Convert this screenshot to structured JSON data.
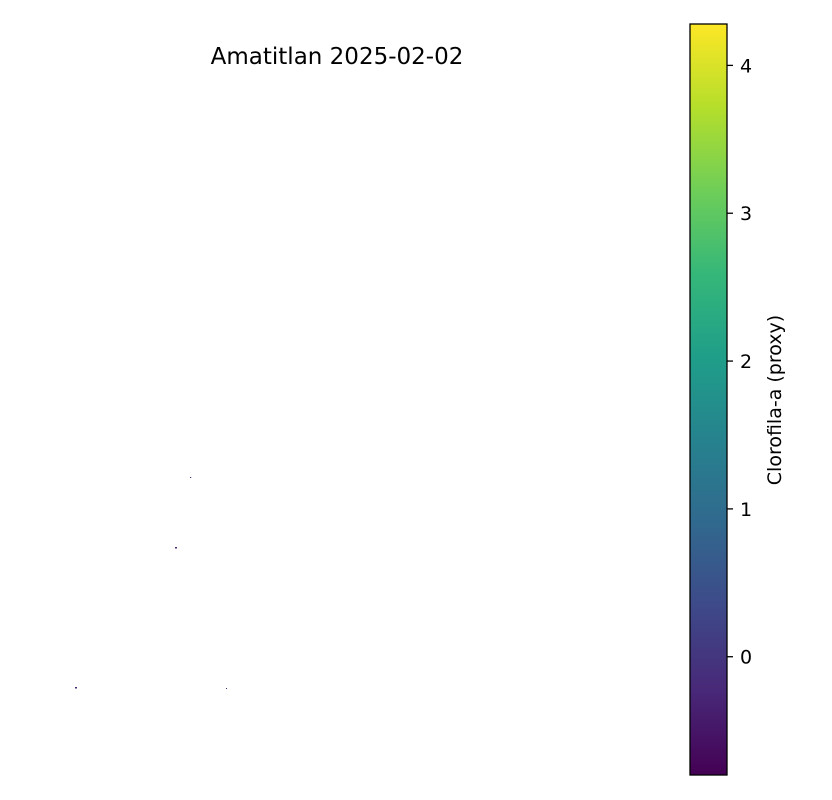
{
  "chart_data": {
    "type": "heatmap",
    "title": "Amatitlan 2025-02-02",
    "colormap": "viridis",
    "colormap_stops": [
      "#440154",
      "#482878",
      "#3e4989",
      "#31688e",
      "#26828e",
      "#1f9e89",
      "#35b779",
      "#6ece58",
      "#b5de2b",
      "#fde725"
    ],
    "axes_visible": false,
    "grid": false,
    "colorbar": {
      "label": "Clorofila-a (proxy)",
      "placement": "right",
      "vmin": -0.8,
      "vmax": 4.28,
      "ticks": [
        0,
        1,
        2,
        3,
        4
      ],
      "tick_labels": [
        "0",
        "1",
        "2",
        "3",
        "4"
      ]
    },
    "visible_pixels": [
      {
        "value": -0.5
      },
      {
        "value": -0.5
      },
      {
        "value": -0.5
      },
      {
        "value": -0.5
      }
    ]
  }
}
